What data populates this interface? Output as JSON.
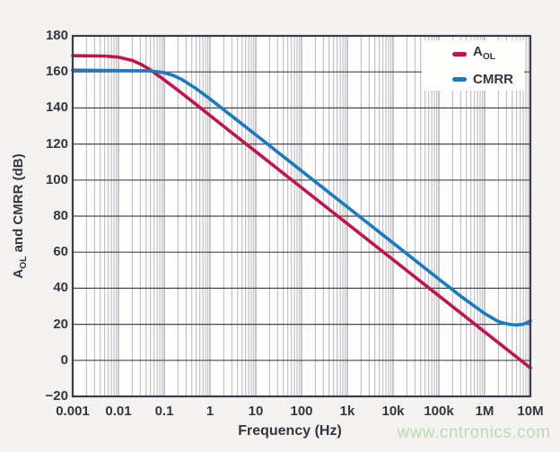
{
  "chart_data": {
    "type": "line",
    "x_scale": "log",
    "title": "",
    "xlabel": "Frequency (Hz)",
    "ylabel": {
      "pre": "A",
      "sub": "OL",
      "post": " and CMRR (dB)"
    },
    "xlim": [
      0.001,
      10000000
    ],
    "ylim": [
      -20,
      180
    ],
    "grid": {
      "vertical": "log minor lines 2-9 each decade",
      "horizontal": "major lines every 20 dB"
    },
    "x_ticks": [
      {
        "v": 0.001,
        "label": "0.001"
      },
      {
        "v": 0.01,
        "label": "0.01"
      },
      {
        "v": 0.1,
        "label": "0.1"
      },
      {
        "v": 1,
        "label": "1"
      },
      {
        "v": 10,
        "label": "10"
      },
      {
        "v": 100,
        "label": "100"
      },
      {
        "v": 1000,
        "label": "1k"
      },
      {
        "v": 10000,
        "label": "10k"
      },
      {
        "v": 100000,
        "label": "100k"
      },
      {
        "v": 1000000,
        "label": "1M"
      },
      {
        "v": 10000000,
        "label": "10M"
      }
    ],
    "y_ticks": [
      {
        "v": 180,
        "label": "180"
      },
      {
        "v": 160,
        "label": "160"
      },
      {
        "v": 140,
        "label": "140"
      },
      {
        "v": 120,
        "label": "120"
      },
      {
        "v": 100,
        "label": "100"
      },
      {
        "v": 80,
        "label": "80"
      },
      {
        "v": 60,
        "label": "60"
      },
      {
        "v": 40,
        "label": "40"
      },
      {
        "v": 20,
        "label": "20"
      },
      {
        "v": 0,
        "label": "0"
      },
      {
        "v": -20,
        "label": "−20"
      }
    ],
    "legend": {
      "position": "top-right",
      "items": [
        {
          "name": "AOL",
          "label_main": "A",
          "label_sub": "OL",
          "color": "#c3134f"
        },
        {
          "name": "CMRR",
          "label_main": "CMRR",
          "label_sub": "",
          "color": "#1b7bc0"
        }
      ]
    },
    "series": [
      {
        "name": "AOL",
        "color": "#c3134f",
        "description": "Open-loop gain: 169 dB flat to ~0.02 Hz, then -20 dB/decade reaching ~-4 dB at 10 MHz",
        "points": [
          [
            0.001,
            169.0
          ],
          [
            0.005,
            168.8
          ],
          [
            0.01,
            168.2
          ],
          [
            0.02,
            166.4
          ],
          [
            0.03,
            164.4
          ],
          [
            0.05,
            161.1
          ],
          [
            0.1,
            155.6
          ],
          [
            0.2,
            149.8
          ],
          [
            0.5,
            141.9
          ],
          [
            1,
            135.8
          ],
          [
            10,
            115.8
          ],
          [
            100,
            95.8
          ],
          [
            1000,
            75.8
          ],
          [
            10000,
            55.8
          ],
          [
            100000,
            35.8
          ],
          [
            1000000,
            15.8
          ],
          [
            10000000,
            -4.2
          ]
        ]
      },
      {
        "name": "CMRR",
        "color": "#1b7bc0",
        "description": "CMRR: 161 dB flat to ~0.1 Hz, -20 dB/decade, flattening near 20 dB above 2 MHz",
        "points": [
          [
            0.001,
            161.0
          ],
          [
            0.05,
            160.6
          ],
          [
            0.1,
            159.6
          ],
          [
            0.16,
            158.0
          ],
          [
            0.25,
            155.6
          ],
          [
            0.5,
            150.7
          ],
          [
            1,
            145.0
          ],
          [
            3,
            135.5
          ],
          [
            10,
            125.1
          ],
          [
            100,
            105.1
          ],
          [
            1000,
            85.1
          ],
          [
            10000,
            65.1
          ],
          [
            100000,
            45.1
          ],
          [
            300000,
            35.6
          ],
          [
            1000000,
            26.0
          ],
          [
            2000000,
            21.5
          ],
          [
            3000000,
            20.3
          ],
          [
            4000000,
            19.8
          ],
          [
            5000000,
            19.6
          ],
          [
            7000000,
            20.0
          ],
          [
            10000000,
            21.8
          ]
        ]
      }
    ]
  },
  "watermark": {
    "text": "www.cntronics.com",
    "color": "#b6dfad"
  },
  "colors": {
    "text": "#35353f",
    "frame": "#3c3c46",
    "grid_major_h": "#474750",
    "grid_decade_v": "#8f8f99",
    "grid_minor_v": "#b7b7bf",
    "page_bg": "#f4f3f1",
    "plot_bg": "#fdfdfc"
  }
}
